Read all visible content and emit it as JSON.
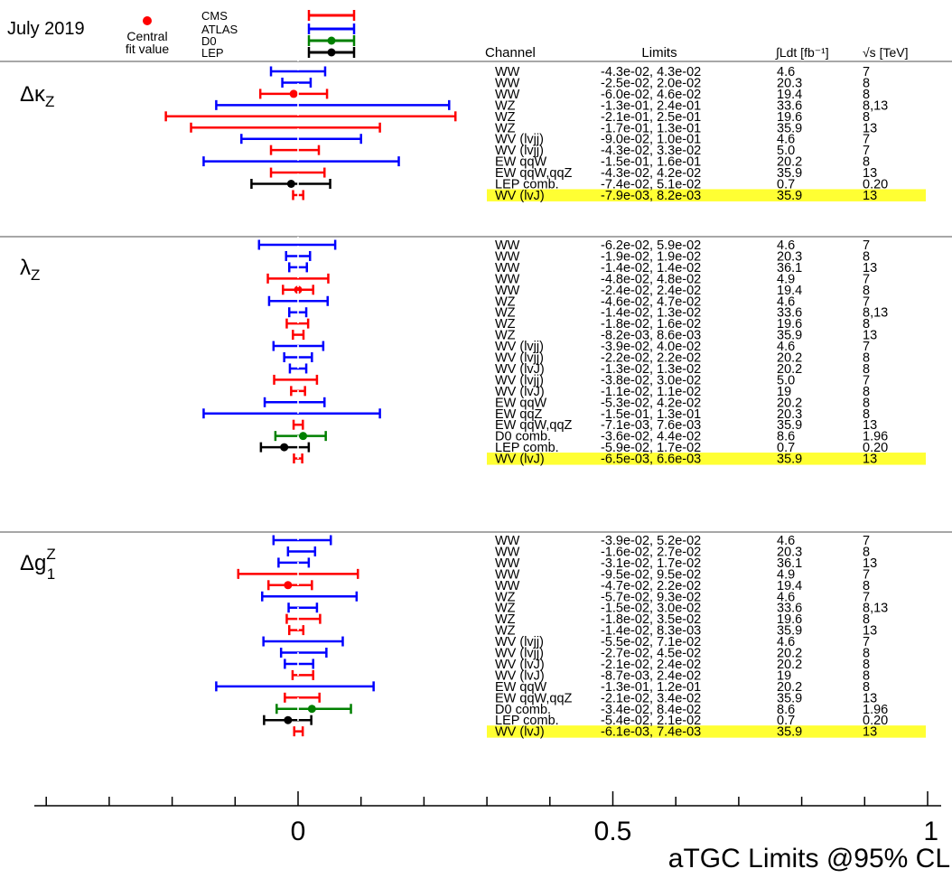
{
  "header": {
    "date": "July 2019",
    "central_label_1": "Central",
    "central_label_2": "fit value",
    "experiments": [
      "CMS",
      "ATLAS",
      "D0",
      "LEP"
    ]
  },
  "columns": {
    "channel": "Channel",
    "limits": "Limits",
    "lumi": "∫Ldt [fb⁻¹]",
    "energy": "√s [TeV]"
  },
  "colors": {
    "CMS": "#ff0000",
    "ATLAS": "#0000ff",
    "D0": "#008000",
    "LEP": "#000000",
    "highlight": "#ffff33"
  },
  "chart_data": {
    "type": "interval",
    "xlabel": "aTGC Limits @95% CL",
    "xlim": [
      -0.5,
      1.0
    ],
    "x_ticks": [
      "0",
      "0.5",
      "1"
    ],
    "sections": [
      {
        "label_main": "Δκ",
        "label_sub": "Z",
        "label_sup": "",
        "rows": [
          {
            "exp": "ATLAS",
            "channel": "WW",
            "limits": "-4.3e-02, 4.3e-02",
            "lumi": "4.6",
            "energy": "7",
            "lo": -0.043,
            "hi": 0.043,
            "central": null,
            "hl": false
          },
          {
            "exp": "ATLAS",
            "channel": "WW",
            "limits": "-2.5e-02, 2.0e-02",
            "lumi": "20.3",
            "energy": "8",
            "lo": -0.025,
            "hi": 0.02,
            "central": null,
            "hl": false
          },
          {
            "exp": "CMS",
            "channel": "WW",
            "limits": "-6.0e-02, 4.6e-02",
            "lumi": "19.4",
            "energy": "8",
            "lo": -0.06,
            "hi": 0.046,
            "central": -0.007,
            "hl": false
          },
          {
            "exp": "ATLAS",
            "channel": "WZ",
            "limits": "-1.3e-01, 2.4e-01",
            "lumi": "33.6",
            "energy": "8,13",
            "lo": -0.13,
            "hi": 0.24,
            "central": null,
            "hl": false
          },
          {
            "exp": "CMS",
            "channel": "WZ",
            "limits": "-2.1e-01, 2.5e-01",
            "lumi": "19.6",
            "energy": "8",
            "lo": -0.21,
            "hi": 0.25,
            "central": null,
            "hl": false
          },
          {
            "exp": "CMS",
            "channel": "WZ",
            "limits": "-1.7e-01, 1.3e-01",
            "lumi": "35.9",
            "energy": "13",
            "lo": -0.17,
            "hi": 0.13,
            "central": null,
            "hl": false
          },
          {
            "exp": "ATLAS",
            "channel": "WV (lvjj)",
            "limits": "-9.0e-02, 1.0e-01",
            "lumi": "4.6",
            "energy": "7",
            "lo": -0.09,
            "hi": 0.1,
            "central": null,
            "hl": false
          },
          {
            "exp": "CMS",
            "channel": "WV (lvjj)",
            "limits": "-4.3e-02, 3.3e-02",
            "lumi": "5.0",
            "energy": "7",
            "lo": -0.043,
            "hi": 0.033,
            "central": null,
            "hl": false
          },
          {
            "exp": "ATLAS",
            "channel": "EW qqW",
            "limits": "-1.5e-01, 1.6e-01",
            "lumi": "20.2",
            "energy": "8",
            "lo": -0.15,
            "hi": 0.16,
            "central": null,
            "hl": false
          },
          {
            "exp": "CMS",
            "channel": "EW qqW,qqZ",
            "limits": "-4.3e-02, 4.2e-02",
            "lumi": "35.9",
            "energy": "13",
            "lo": -0.043,
            "hi": 0.042,
            "central": null,
            "hl": false
          },
          {
            "exp": "LEP",
            "channel": "LEP comb.",
            "limits": "-7.4e-02, 5.1e-02",
            "lumi": "0.7",
            "energy": "0.20",
            "lo": -0.074,
            "hi": 0.051,
            "central": -0.011,
            "hl": false
          },
          {
            "exp": "CMS",
            "channel": "WV (lvJ)",
            "limits": "-7.9e-03, 8.2e-03",
            "lumi": "35.9",
            "energy": "13",
            "lo": -0.0079,
            "hi": 0.0082,
            "central": null,
            "hl": true
          }
        ]
      },
      {
        "label_main": "λ",
        "label_sub": "Z",
        "label_sup": "",
        "rows": [
          {
            "exp": "ATLAS",
            "channel": "WW",
            "limits": "-6.2e-02, 5.9e-02",
            "lumi": "4.6",
            "energy": "7",
            "lo": -0.062,
            "hi": 0.059,
            "central": null,
            "hl": false
          },
          {
            "exp": "ATLAS",
            "channel": "WW",
            "limits": "-1.9e-02, 1.9e-02",
            "lumi": "20.3",
            "energy": "8",
            "lo": -0.019,
            "hi": 0.019,
            "central": null,
            "hl": false
          },
          {
            "exp": "ATLAS",
            "channel": "WW",
            "limits": "-1.4e-02, 1.4e-02",
            "lumi": "36.1",
            "energy": "13",
            "lo": -0.014,
            "hi": 0.014,
            "central": null,
            "hl": false
          },
          {
            "exp": "CMS",
            "channel": "WW",
            "limits": "-4.8e-02, 4.8e-02",
            "lumi": "4.9",
            "energy": "7",
            "lo": -0.048,
            "hi": 0.048,
            "central": null,
            "hl": false
          },
          {
            "exp": "CMS",
            "channel": "WW",
            "limits": "-2.4e-02, 2.4e-02",
            "lumi": "19.4",
            "energy": "8",
            "lo": -0.024,
            "hi": 0.024,
            "central": 0.0,
            "hl": false
          },
          {
            "exp": "ATLAS",
            "channel": "WZ",
            "limits": "-4.6e-02, 4.7e-02",
            "lumi": "4.6",
            "energy": "7",
            "lo": -0.046,
            "hi": 0.047,
            "central": null,
            "hl": false
          },
          {
            "exp": "ATLAS",
            "channel": "WZ",
            "limits": "-1.4e-02, 1.3e-02",
            "lumi": "33.6",
            "energy": "8,13",
            "lo": -0.014,
            "hi": 0.013,
            "central": null,
            "hl": false
          },
          {
            "exp": "CMS",
            "channel": "WZ",
            "limits": "-1.8e-02, 1.6e-02",
            "lumi": "19.6",
            "energy": "8",
            "lo": -0.018,
            "hi": 0.016,
            "central": null,
            "hl": false
          },
          {
            "exp": "CMS",
            "channel": "WZ",
            "limits": "-8.2e-03, 8.6e-03",
            "lumi": "35.9",
            "energy": "13",
            "lo": -0.0082,
            "hi": 0.0086,
            "central": null,
            "hl": false
          },
          {
            "exp": "ATLAS",
            "channel": "WV (lvjj)",
            "limits": "-3.9e-02, 4.0e-02",
            "lumi": "4.6",
            "energy": "7",
            "lo": -0.039,
            "hi": 0.04,
            "central": null,
            "hl": false
          },
          {
            "exp": "ATLAS",
            "channel": "WV (lvjj)",
            "limits": "-2.2e-02, 2.2e-02",
            "lumi": "20.2",
            "energy": "8",
            "lo": -0.022,
            "hi": 0.022,
            "central": null,
            "hl": false
          },
          {
            "exp": "ATLAS",
            "channel": "WV (lvJ)",
            "limits": "-1.3e-02, 1.3e-02",
            "lumi": "20.2",
            "energy": "8",
            "lo": -0.013,
            "hi": 0.013,
            "central": null,
            "hl": false
          },
          {
            "exp": "CMS",
            "channel": "WV (lvjj)",
            "limits": "-3.8e-02, 3.0e-02",
            "lumi": "5.0",
            "energy": "7",
            "lo": -0.038,
            "hi": 0.03,
            "central": null,
            "hl": false
          },
          {
            "exp": "CMS",
            "channel": "WV (lvJ)",
            "limits": "-1.1e-02, 1.1e-02",
            "lumi": "19",
            "energy": "8",
            "lo": -0.011,
            "hi": 0.011,
            "central": null,
            "hl": false
          },
          {
            "exp": "ATLAS",
            "channel": "EW qqW",
            "limits": "-5.3e-02, 4.2e-02",
            "lumi": "20.2",
            "energy": "8",
            "lo": -0.053,
            "hi": 0.042,
            "central": null,
            "hl": false
          },
          {
            "exp": "ATLAS",
            "channel": "EW qqZ",
            "limits": "-1.5e-01, 1.3e-01",
            "lumi": "20.3",
            "energy": "8",
            "lo": -0.15,
            "hi": 0.13,
            "central": null,
            "hl": false
          },
          {
            "exp": "CMS",
            "channel": "EW qqW,qqZ",
            "limits": "-7.1e-03, 7.6e-03",
            "lumi": "35.9",
            "energy": "13",
            "lo": -0.0071,
            "hi": 0.0076,
            "central": null,
            "hl": false
          },
          {
            "exp": "D0",
            "channel": "D0 comb.",
            "limits": "-3.6e-02, 4.4e-02",
            "lumi": "8.6",
            "energy": "1.96",
            "lo": -0.036,
            "hi": 0.044,
            "central": 0.008,
            "hl": false
          },
          {
            "exp": "LEP",
            "channel": "LEP comb.",
            "limits": "-5.9e-02, 1.7e-02",
            "lumi": "0.7",
            "energy": "0.20",
            "lo": -0.059,
            "hi": 0.017,
            "central": -0.022,
            "hl": false
          },
          {
            "exp": "CMS",
            "channel": "WV (lvJ)",
            "limits": "-6.5e-03, 6.6e-03",
            "lumi": "35.9",
            "energy": "13",
            "lo": -0.0065,
            "hi": 0.0066,
            "central": null,
            "hl": true
          }
        ]
      },
      {
        "label_main": "Δg",
        "label_sub": "1",
        "label_sup": "Z",
        "rows": [
          {
            "exp": "ATLAS",
            "channel": "WW",
            "limits": "-3.9e-02, 5.2e-02",
            "lumi": "4.6",
            "energy": "7",
            "lo": -0.039,
            "hi": 0.052,
            "central": null,
            "hl": false
          },
          {
            "exp": "ATLAS",
            "channel": "WW",
            "limits": "-1.6e-02, 2.7e-02",
            "lumi": "20.3",
            "energy": "8",
            "lo": -0.016,
            "hi": 0.027,
            "central": null,
            "hl": false
          },
          {
            "exp": "ATLAS",
            "channel": "WW",
            "limits": "-3.1e-02, 1.7e-02",
            "lumi": "36.1",
            "energy": "13",
            "lo": -0.031,
            "hi": 0.017,
            "central": null,
            "hl": false
          },
          {
            "exp": "CMS",
            "channel": "WW",
            "limits": "-9.5e-02, 9.5e-02",
            "lumi": "4.9",
            "energy": "7",
            "lo": -0.095,
            "hi": 0.095,
            "central": null,
            "hl": false
          },
          {
            "exp": "CMS",
            "channel": "WW",
            "limits": "-4.7e-02, 2.2e-02",
            "lumi": "19.4",
            "energy": "8",
            "lo": -0.047,
            "hi": 0.022,
            "central": -0.016,
            "hl": false
          },
          {
            "exp": "ATLAS",
            "channel": "WZ",
            "limits": "-5.7e-02, 9.3e-02",
            "lumi": "4.6",
            "energy": "7",
            "lo": -0.057,
            "hi": 0.093,
            "central": null,
            "hl": false
          },
          {
            "exp": "ATLAS",
            "channel": "WZ",
            "limits": "-1.5e-02, 3.0e-02",
            "lumi": "33.6",
            "energy": "8,13",
            "lo": -0.015,
            "hi": 0.03,
            "central": null,
            "hl": false
          },
          {
            "exp": "CMS",
            "channel": "WZ",
            "limits": "-1.8e-02, 3.5e-02",
            "lumi": "19.6",
            "energy": "8",
            "lo": -0.018,
            "hi": 0.035,
            "central": null,
            "hl": false
          },
          {
            "exp": "CMS",
            "channel": "WZ",
            "limits": "-1.4e-02, 8.3e-03",
            "lumi": "35.9",
            "energy": "13",
            "lo": -0.014,
            "hi": 0.0083,
            "central": null,
            "hl": false
          },
          {
            "exp": "ATLAS",
            "channel": "WV (lvjj)",
            "limits": "-5.5e-02, 7.1e-02",
            "lumi": "4.6",
            "energy": "7",
            "lo": -0.055,
            "hi": 0.071,
            "central": null,
            "hl": false
          },
          {
            "exp": "ATLAS",
            "channel": "WV (lvjj)",
            "limits": "-2.7e-02, 4.5e-02",
            "lumi": "20.2",
            "energy": "8",
            "lo": -0.027,
            "hi": 0.045,
            "central": null,
            "hl": false
          },
          {
            "exp": "ATLAS",
            "channel": "WV (lvJ)",
            "limits": "-2.1e-02, 2.4e-02",
            "lumi": "20.2",
            "energy": "8",
            "lo": -0.021,
            "hi": 0.024,
            "central": null,
            "hl": false
          },
          {
            "exp": "CMS",
            "channel": "WV (lvJ)",
            "limits": "-8.7e-03, 2.4e-02",
            "lumi": "19",
            "energy": "8",
            "lo": -0.0087,
            "hi": 0.024,
            "central": null,
            "hl": false
          },
          {
            "exp": "ATLAS",
            "channel": "EW qqW",
            "limits": "-1.3e-01, 1.2e-01",
            "lumi": "20.2",
            "energy": "8",
            "lo": -0.13,
            "hi": 0.12,
            "central": null,
            "hl": false
          },
          {
            "exp": "CMS",
            "channel": "EW qqW,qqZ",
            "limits": "-2.1e-02, 3.4e-02",
            "lumi": "35.9",
            "energy": "13",
            "lo": -0.021,
            "hi": 0.034,
            "central": null,
            "hl": false
          },
          {
            "exp": "D0",
            "channel": "D0 comb.",
            "limits": "-3.4e-02, 8.4e-02",
            "lumi": "8.6",
            "energy": "1.96",
            "lo": -0.034,
            "hi": 0.084,
            "central": 0.022,
            "hl": false
          },
          {
            "exp": "LEP",
            "channel": "LEP comb.",
            "limits": "-5.4e-02, 2.1e-02",
            "lumi": "0.7",
            "energy": "0.20",
            "lo": -0.054,
            "hi": 0.021,
            "central": -0.016,
            "hl": false
          },
          {
            "exp": "CMS",
            "channel": "WV (lvJ)",
            "limits": "-6.1e-03, 7.4e-03",
            "lumi": "35.9",
            "energy": "13",
            "lo": -0.0061,
            "hi": 0.0074,
            "central": null,
            "hl": true
          }
        ]
      }
    ]
  }
}
